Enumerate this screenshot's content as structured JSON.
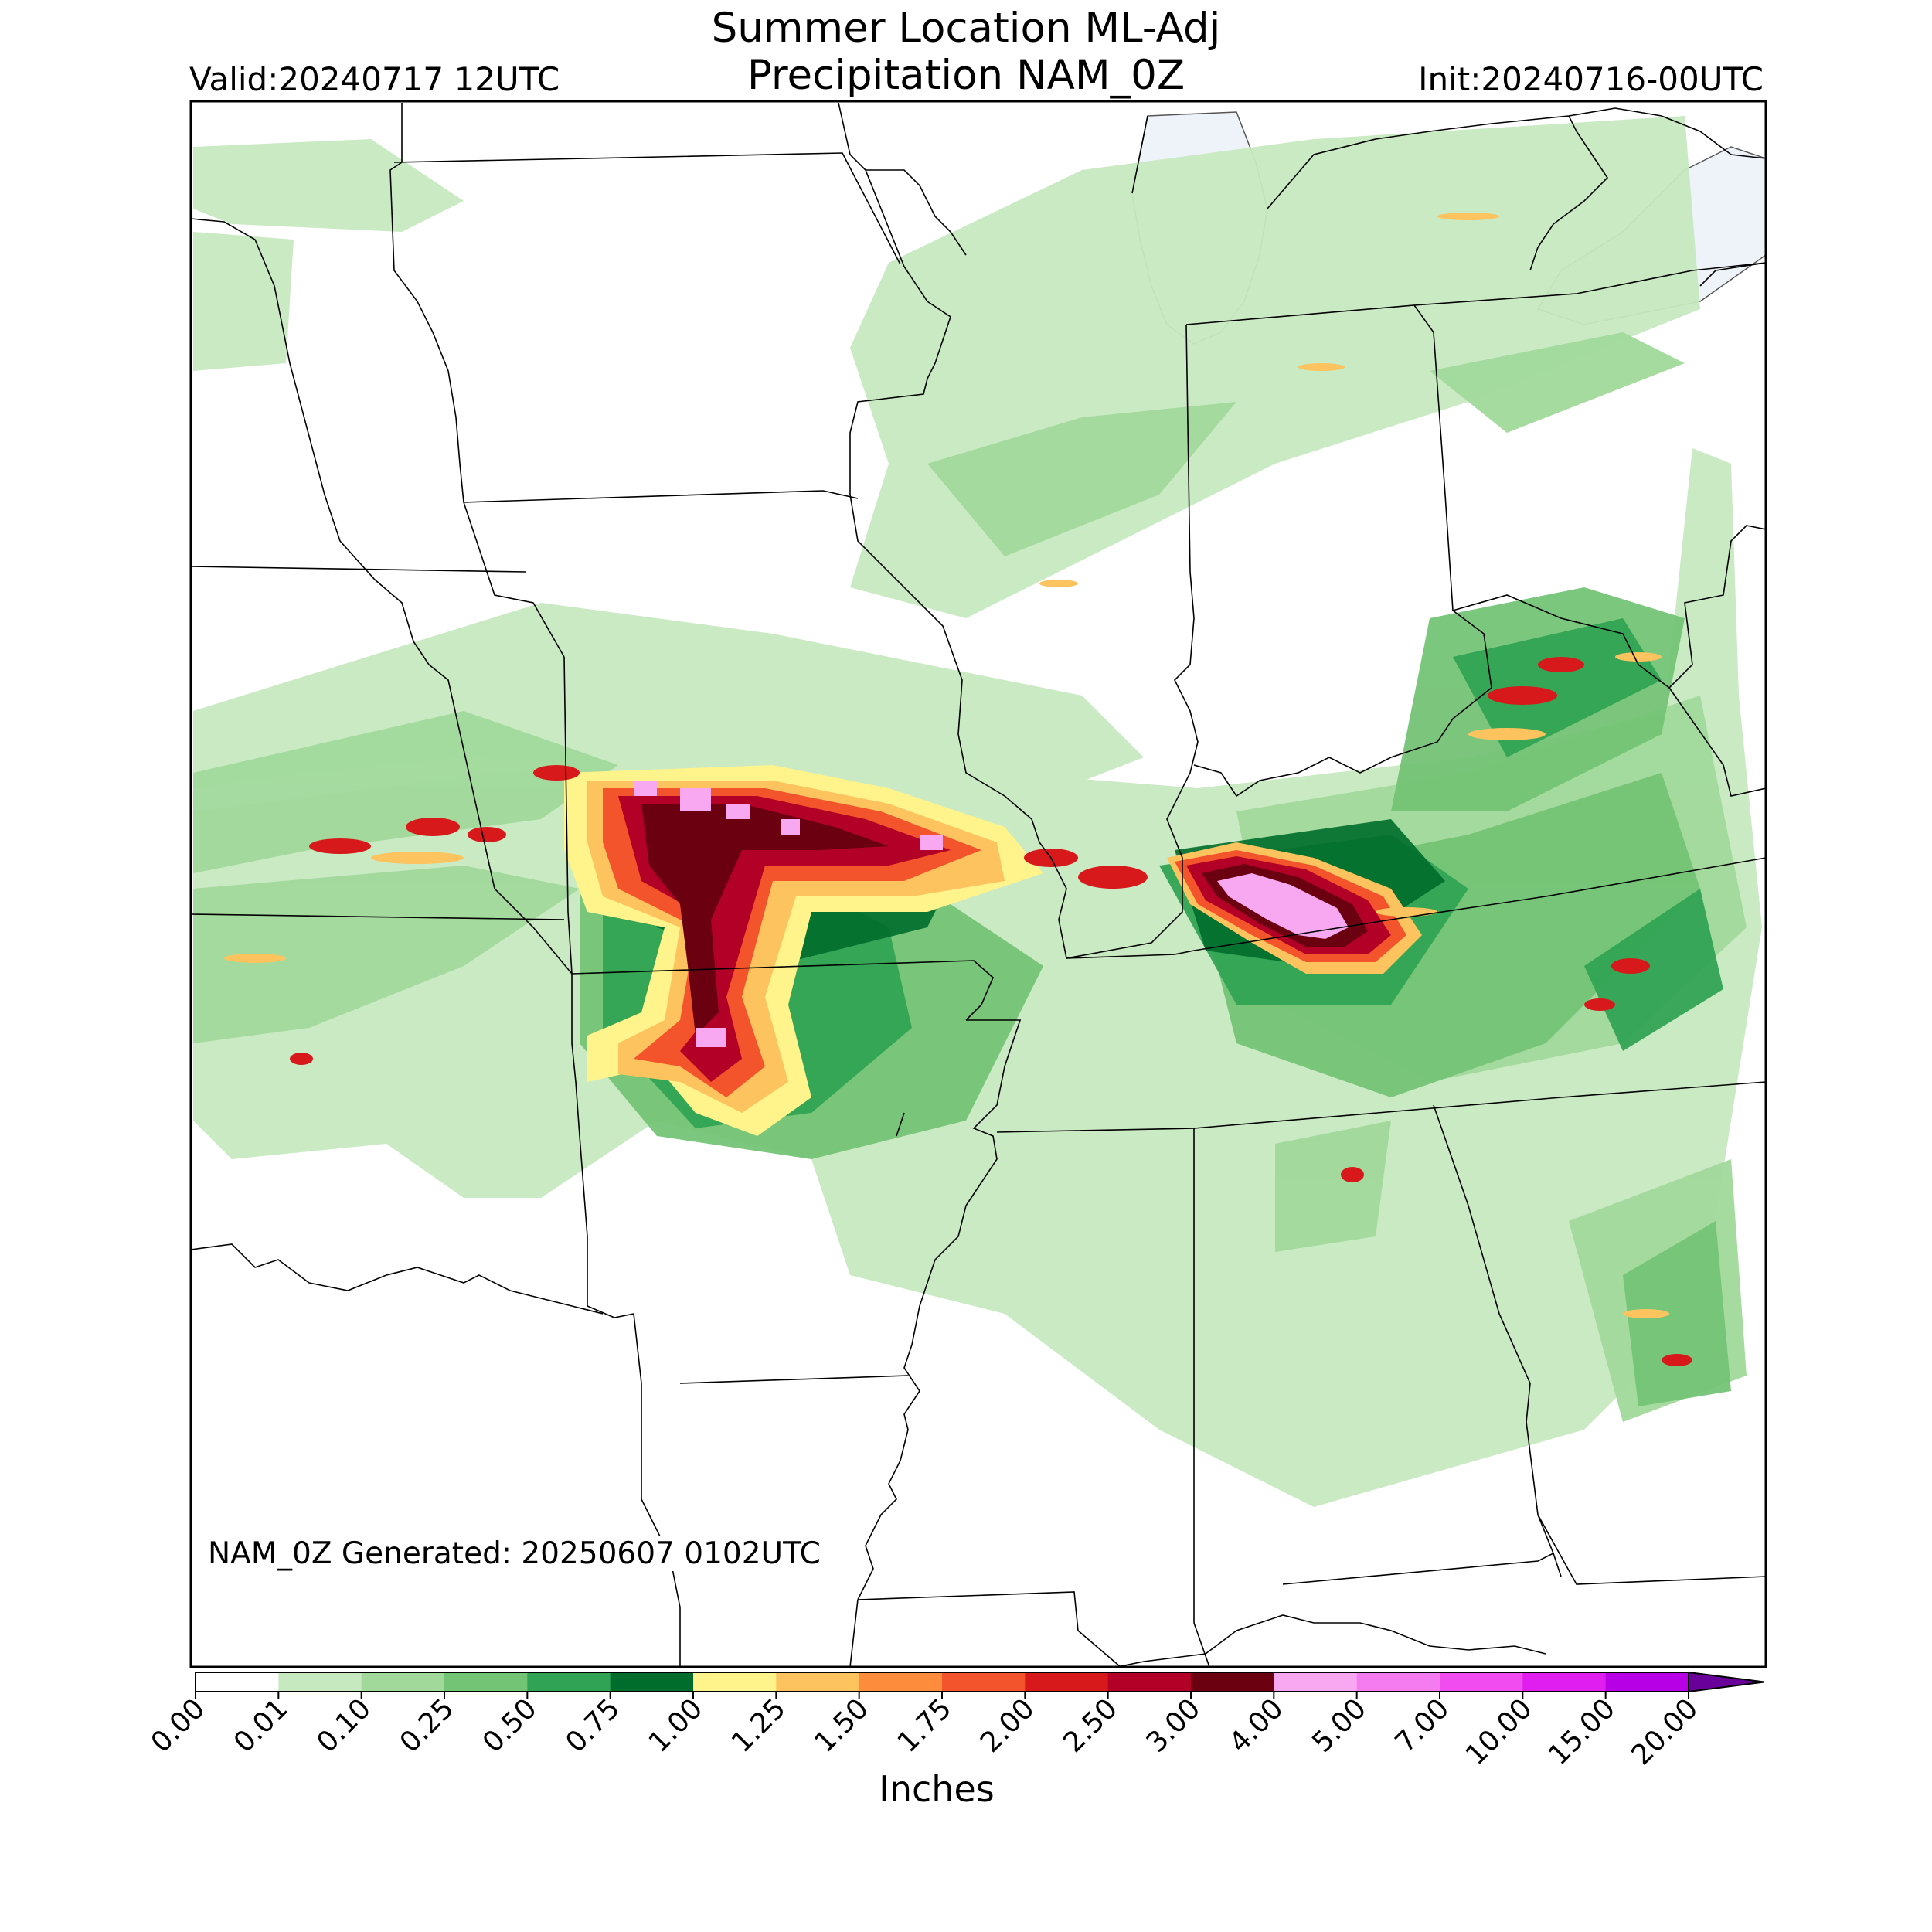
{
  "title_line1": "Summer Location ML-Adj",
  "title_line2": "Precipitation NAM_0Z",
  "valid_label": "Valid:20240717 12UTC",
  "init_label": "Init:20240716-00UTC",
  "generated_label": "NAM_0Z Generated: 20250607 0102UTC",
  "colorbar": {
    "units": "Inches",
    "ticks": [
      "0.00",
      "0.01",
      "0.10",
      "0.25",
      "0.50",
      "0.75",
      "1.00",
      "1.25",
      "1.50",
      "1.75",
      "2.00",
      "2.50",
      "3.00",
      "4.00",
      "5.00",
      "7.00",
      "10.00",
      "15.00",
      "20.00"
    ],
    "colors": [
      "#ffffff",
      "#c7e9c0",
      "#a1d99b",
      "#74c476",
      "#31a354",
      "#006d2c",
      "#fff38c",
      "#fdc35e",
      "#fd8d3c",
      "#f4542b",
      "#d7191c",
      "#b20026",
      "#6b0010",
      "#f7a8f0",
      "#f47cf0",
      "#f04cf0",
      "#e01ef0",
      "#b800e6",
      "#8c00c8"
    ],
    "extend_color": "#6a0099"
  },
  "map_colors": {
    "ocean": "#eef3f9",
    "border": "#000000"
  }
}
